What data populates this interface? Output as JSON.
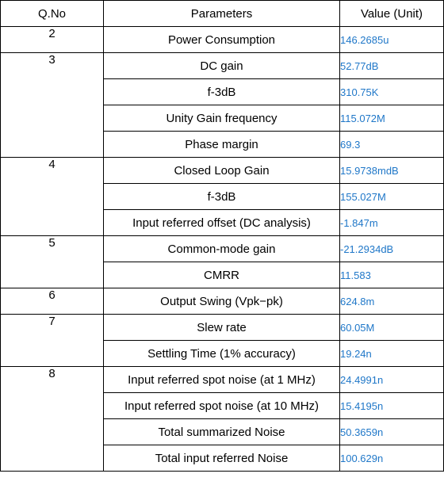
{
  "table": {
    "headers": [
      "Q.No",
      "Parameters",
      "Value (Unit)"
    ],
    "value_color": "#1f77c8",
    "groups": [
      {
        "qno": "2",
        "rows": [
          {
            "param": "Power Consumption",
            "value": "146.2685u"
          }
        ]
      },
      {
        "qno": "3",
        "rows": [
          {
            "param": "DC gain",
            "value": "52.77dB"
          },
          {
            "param": "f-3dB",
            "value": "310.75K"
          },
          {
            "param": "Unity Gain frequency",
            "value": "115.072M"
          },
          {
            "param": "Phase margin",
            "value": "69.3"
          }
        ]
      },
      {
        "qno": "4",
        "rows": [
          {
            "param": "Closed Loop Gain",
            "value": "15.9738mdB"
          },
          {
            "param": "f-3dB",
            "value": "155.027M"
          },
          {
            "param": "Input referred offset (DC analysis)",
            "value": "-1.847m"
          }
        ]
      },
      {
        "qno": "5",
        "rows": [
          {
            "param": "Common-mode gain",
            "value": "-21.2934dB"
          },
          {
            "param": "CMRR",
            "value": "11.583"
          }
        ]
      },
      {
        "qno": "6",
        "rows": [
          {
            "param": "Output Swing (Vpk−pk)",
            "value": "624.8m"
          }
        ]
      },
      {
        "qno": "7",
        "rows": [
          {
            "param": "Slew rate",
            "value": "60.05M"
          },
          {
            "param": "Settling Time (1% accuracy)",
            "value": "19.24n"
          }
        ]
      },
      {
        "qno": "8",
        "rows": [
          {
            "param": "Input referred spot noise (at 1 MHz)",
            "value": "24.4991n"
          },
          {
            "param": "Input referred spot noise (at 10 MHz)",
            "value": "15.4195n"
          },
          {
            "param": "Total summarized Noise",
            "value": "50.3659n"
          },
          {
            "param": "Total input referred Noise",
            "value": "100.629n"
          }
        ]
      }
    ]
  }
}
